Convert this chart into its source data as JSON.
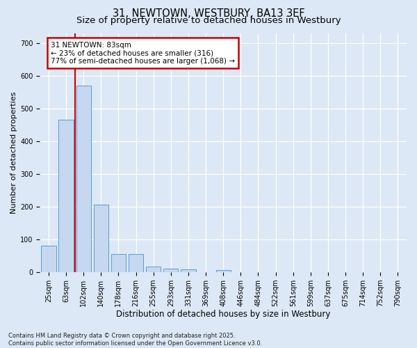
{
  "title1": "31, NEWTOWN, WESTBURY, BA13 3EF",
  "title2": "Size of property relative to detached houses in Westbury",
  "xlabel": "Distribution of detached houses by size in Westbury",
  "ylabel": "Number of detached properties",
  "categories": [
    "25sqm",
    "63sqm",
    "102sqm",
    "140sqm",
    "178sqm",
    "216sqm",
    "255sqm",
    "293sqm",
    "331sqm",
    "369sqm",
    "408sqm",
    "446sqm",
    "484sqm",
    "522sqm",
    "561sqm",
    "599sqm",
    "637sqm",
    "675sqm",
    "714sqm",
    "752sqm",
    "790sqm"
  ],
  "values": [
    80,
    465,
    570,
    207,
    55,
    55,
    18,
    10,
    8,
    0,
    7,
    0,
    0,
    0,
    0,
    0,
    0,
    0,
    0,
    0,
    0
  ],
  "bar_color": "#c5d8f0",
  "bar_edge_color": "#5b9bd5",
  "bg_color": "#dce8f5",
  "annotation_line_bin": 1.52,
  "annotation_text": "31 NEWTOWN: 83sqm\n← 23% of detached houses are smaller (316)\n77% of semi-detached houses are larger (1,068) →",
  "annotation_box_color": "#ffffff",
  "annotation_box_edge": "#cc0000",
  "footer": "Contains HM Land Registry data © Crown copyright and database right 2025.\nContains public sector information licensed under the Open Government Licence v3.0.",
  "title_fontsize": 10.5,
  "subtitle_fontsize": 9.5,
  "xlabel_fontsize": 8.5,
  "ylabel_fontsize": 8,
  "tick_fontsize": 7,
  "annot_fontsize": 7.5,
  "footer_fontsize": 6,
  "ylim": [
    0,
    730
  ],
  "yticks": [
    0,
    100,
    200,
    300,
    400,
    500,
    600,
    700
  ]
}
